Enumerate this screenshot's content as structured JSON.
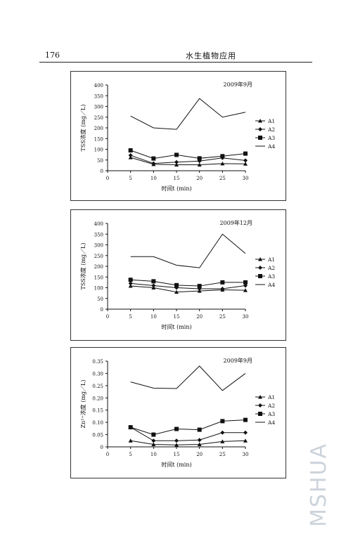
{
  "page": {
    "number": "176",
    "title": "水生植物应用",
    "watermark": "MSHUA"
  },
  "chart_data": [
    {
      "type": "line",
      "title": "2009年9月",
      "xlabel": "时间t (min)",
      "ylabel": "TSS浓度 (mg／L)",
      "x": [
        5,
        10,
        15,
        20,
        25,
        30
      ],
      "xticks": [
        "0",
        "5",
        "10",
        "15",
        "20",
        "25",
        "30"
      ],
      "yticks": [
        "0",
        "50",
        "100",
        "150",
        "200",
        "250",
        "300",
        "350",
        "400"
      ],
      "xlim": [
        0,
        30
      ],
      "ylim": [
        0,
        400
      ],
      "legend_position": "right",
      "series": [
        {
          "name": "A1",
          "marker": "triangle",
          "values": [
            62,
            30,
            28,
            28,
            33,
            32
          ]
        },
        {
          "name": "A2",
          "marker": "diamond",
          "values": [
            72,
            34,
            40,
            45,
            60,
            48
          ]
        },
        {
          "name": "A3",
          "marker": "square",
          "values": [
            95,
            57,
            74,
            58,
            68,
            80
          ]
        },
        {
          "name": "A4",
          "marker": "none",
          "values": [
            255,
            200,
            193,
            337,
            250,
            273
          ]
        }
      ]
    },
    {
      "type": "line",
      "title": "2009年12月",
      "xlabel": "时间t (min)",
      "ylabel": "TSS浓度 (mg／L)",
      "x": [
        5,
        10,
        15,
        20,
        25,
        30
      ],
      "xticks": [
        "0",
        "5",
        "10",
        "15",
        "20",
        "25",
        "30"
      ],
      "yticks": [
        "0",
        "50",
        "100",
        "150",
        "200",
        "250",
        "300",
        "350",
        "400"
      ],
      "xlim": [
        0,
        30
      ],
      "ylim": [
        0,
        400
      ],
      "legend_position": "right",
      "series": [
        {
          "name": "A1",
          "marker": "triangle",
          "values": [
            108,
            100,
            80,
            85,
            90,
            88
          ]
        },
        {
          "name": "A2",
          "marker": "diamond",
          "values": [
            120,
            110,
            100,
            95,
            95,
            110
          ]
        },
        {
          "name": "A3",
          "marker": "square",
          "values": [
            137,
            130,
            112,
            108,
            125,
            125
          ]
        },
        {
          "name": "A4",
          "marker": "none",
          "values": [
            245,
            245,
            205,
            193,
            350,
            260
          ]
        }
      ]
    },
    {
      "type": "line",
      "title": "2009年9月",
      "xlabel": "时间t (min)",
      "ylabel": "Zn²⁺浓度 (mg／L)",
      "x": [
        5,
        10,
        15,
        20,
        25,
        30
      ],
      "xticks": [
        "0",
        "5",
        "10",
        "15",
        "20",
        "25",
        "30"
      ],
      "yticks": [
        "0",
        "0.05",
        "0.10",
        "0.15",
        "0.20",
        "0.25",
        "0.30",
        "0.35"
      ],
      "xlim": [
        0,
        30
      ],
      "ylim": [
        0,
        0.35
      ],
      "legend_position": "right",
      "series": [
        {
          "name": "A1",
          "marker": "triangle",
          "values": [
            0.025,
            0.01,
            0.008,
            0.01,
            0.022,
            0.025
          ]
        },
        {
          "name": "A2",
          "marker": "diamond",
          "values": [
            0.08,
            0.025,
            0.025,
            0.028,
            0.058,
            0.058
          ]
        },
        {
          "name": "A3",
          "marker": "square",
          "values": [
            0.08,
            0.05,
            0.073,
            0.07,
            0.105,
            0.11
          ]
        },
        {
          "name": "A4",
          "marker": "none",
          "values": [
            0.265,
            0.24,
            0.238,
            0.33,
            0.23,
            0.3
          ]
        }
      ]
    }
  ]
}
